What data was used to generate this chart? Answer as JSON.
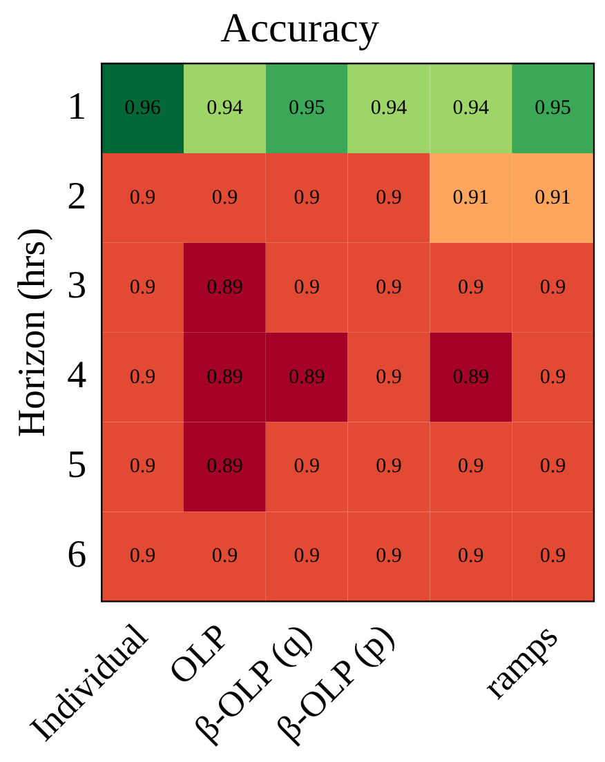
{
  "chart_data": {
    "type": "heatmap",
    "title": "Accuracy",
    "ylabel": "Horizon (hrs)",
    "categories": [
      "Individual",
      "OLP",
      "β-OLP (q)",
      "β-OLP (p)",
      null,
      "ramps"
    ],
    "y_categories": [
      "1",
      "2",
      "3",
      "4",
      "5",
      "6"
    ],
    "cells": [
      [
        0.96,
        0.94,
        0.95,
        0.94,
        0.94,
        0.95
      ],
      [
        0.9,
        0.9,
        0.9,
        0.9,
        0.91,
        0.91
      ],
      [
        0.9,
        0.89,
        0.9,
        0.9,
        0.9,
        0.9
      ],
      [
        0.9,
        0.89,
        0.89,
        0.9,
        0.89,
        0.9
      ],
      [
        0.9,
        0.89,
        0.9,
        0.9,
        0.9,
        0.9
      ],
      [
        0.9,
        0.9,
        0.9,
        0.9,
        0.9,
        0.9
      ]
    ],
    "data_labels": true
  }
}
